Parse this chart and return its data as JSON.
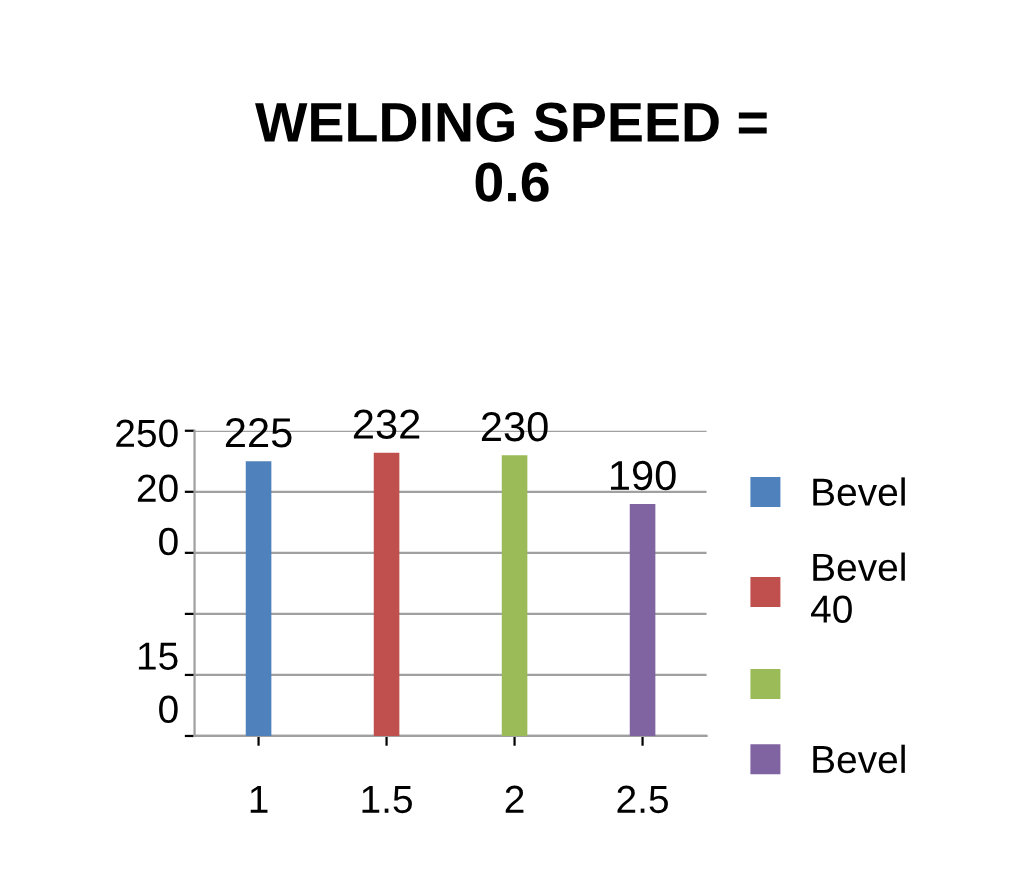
{
  "chart_data": {
    "type": "bar",
    "title": "WELDING SPEED =\n0.6",
    "categories": [
      "1",
      "1.5",
      "2",
      "2.5"
    ],
    "series": [
      {
        "name": "Bevel",
        "color": "#4f81bd",
        "values": [
          225,
          null,
          null,
          null
        ]
      },
      {
        "name": "Bevel\n40",
        "color": "#c0504d",
        "values": [
          null,
          232,
          null,
          null
        ]
      },
      {
        "color": "#9bbb59",
        "values": [
          null,
          null,
          230,
          null
        ]
      },
      {
        "name": "Bevel",
        "color": "#8064a2",
        "values": [
          null,
          null,
          null,
          190
        ]
      }
    ],
    "ylim": [
      0,
      250
    ],
    "yticks": [
      {
        "value": 0,
        "label": null
      },
      {
        "value": 50,
        "label": null
      },
      {
        "value": 100,
        "label": null
      },
      {
        "value": 150,
        "label": null
      },
      {
        "value": 200,
        "label": null
      },
      {
        "value": 250,
        "label": null
      }
    ],
    "annotations": [
      "250",
      "20\n0",
      "15\n0"
    ],
    "grid": "y",
    "data_labels": true,
    "legend": "right"
  }
}
